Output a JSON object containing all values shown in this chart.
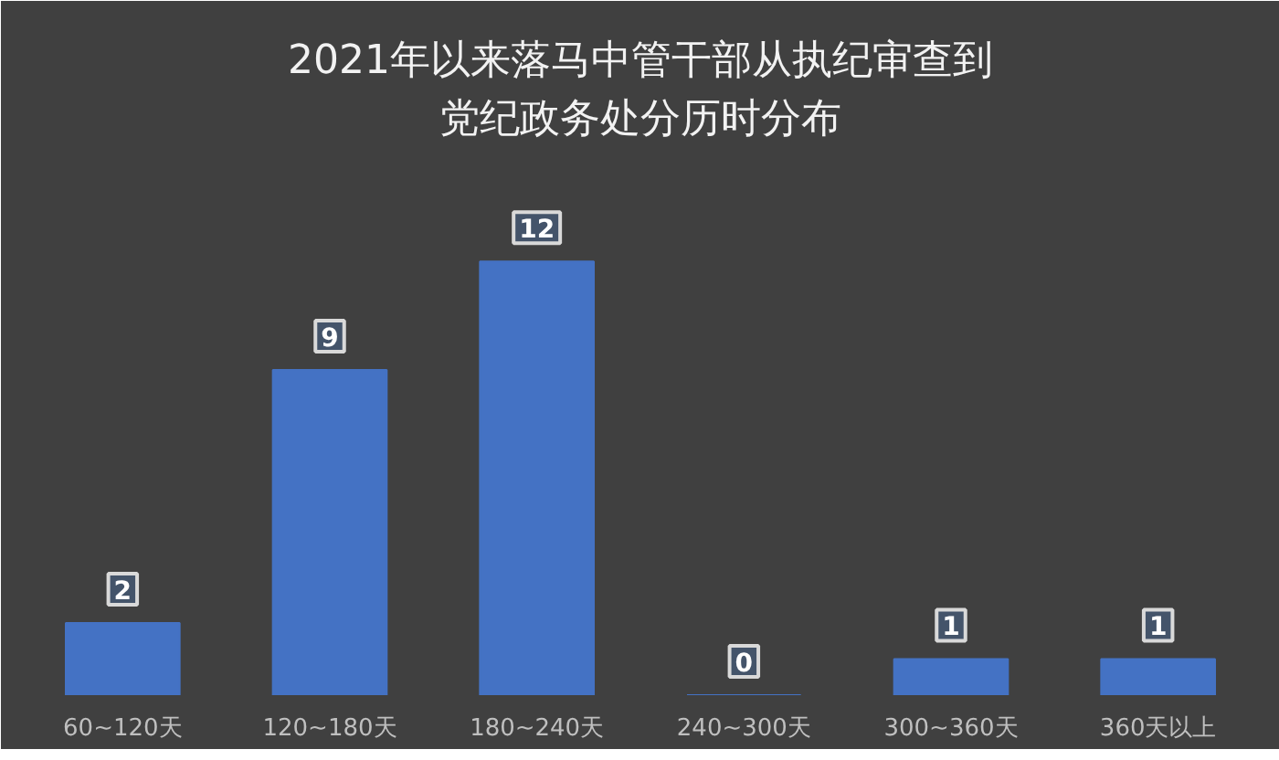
{
  "chart_data": {
    "type": "bar",
    "title": "2021年以来落马中管干部从执纪审查到党纪政务处分历时分布",
    "categories": [
      "60~120天",
      "120~180天",
      "180~240天",
      "240~300天",
      "300~360天",
      "360天以上"
    ],
    "values": [
      2,
      9,
      12,
      0,
      1,
      1
    ],
    "color": "#4472c4",
    "data_labels": true,
    "grid": false
  }
}
